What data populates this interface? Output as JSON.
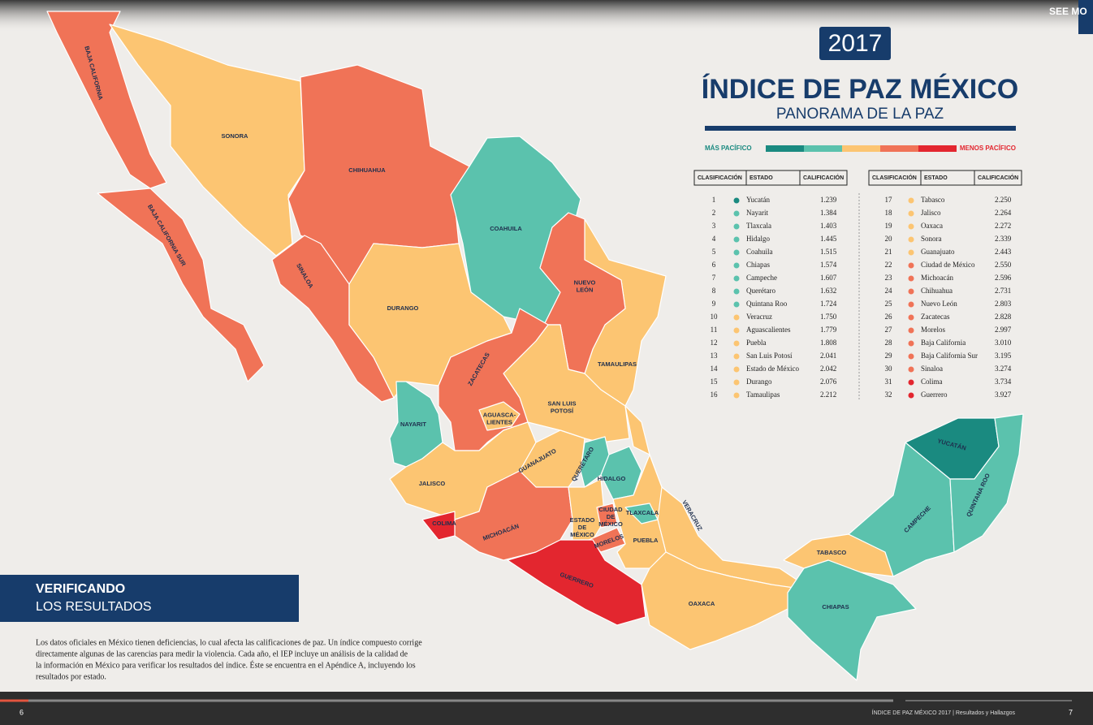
{
  "top_bar": {
    "link": "SEE MO"
  },
  "header": {
    "year": "2017",
    "title": "ÍNDICE DE PAZ MÉXICO",
    "subtitle": "PANORAMA DE LA PAZ"
  },
  "legend": {
    "left": "MÁS PACÍFICO",
    "right": "MENOS PACÍFICO",
    "colors": [
      "#1a8a80",
      "#5bc2ad",
      "#fcc572",
      "#f07357",
      "#e3262f"
    ]
  },
  "table": {
    "columns": [
      "CLASIFICACIÓN",
      "ESTADO",
      "CALIFICACIÓN"
    ],
    "rows": [
      {
        "rank": 1,
        "state": "Yucatán",
        "score": "1.239",
        "color": "#1a8a80"
      },
      {
        "rank": 2,
        "state": "Nayarit",
        "score": "1.384",
        "color": "#5bc2ad"
      },
      {
        "rank": 3,
        "state": "Tlaxcala",
        "score": "1.403",
        "color": "#5bc2ad"
      },
      {
        "rank": 4,
        "state": "Hidalgo",
        "score": "1.445",
        "color": "#5bc2ad"
      },
      {
        "rank": 5,
        "state": "Coahuila",
        "score": "1.515",
        "color": "#5bc2ad"
      },
      {
        "rank": 6,
        "state": "Chiapas",
        "score": "1.574",
        "color": "#5bc2ad"
      },
      {
        "rank": 7,
        "state": "Campeche",
        "score": "1.607",
        "color": "#5bc2ad"
      },
      {
        "rank": 8,
        "state": "Querétaro",
        "score": "1.632",
        "color": "#5bc2ad"
      },
      {
        "rank": 9,
        "state": "Quintana Roo",
        "score": "1.724",
        "color": "#5bc2ad"
      },
      {
        "rank": 10,
        "state": "Veracruz",
        "score": "1.750",
        "color": "#fcc572"
      },
      {
        "rank": 11,
        "state": "Aguascalientes",
        "score": "1.779",
        "color": "#fcc572"
      },
      {
        "rank": 12,
        "state": "Puebla",
        "score": "1.808",
        "color": "#fcc572"
      },
      {
        "rank": 13,
        "state": "San Luis Potosí",
        "score": "2.041",
        "color": "#fcc572"
      },
      {
        "rank": 14,
        "state": "Estado de México",
        "score": "2.042",
        "color": "#fcc572"
      },
      {
        "rank": 15,
        "state": "Durango",
        "score": "2.076",
        "color": "#fcc572"
      },
      {
        "rank": 16,
        "state": "Tamaulipas",
        "score": "2.212",
        "color": "#fcc572"
      },
      {
        "rank": 17,
        "state": "Tabasco",
        "score": "2.250",
        "color": "#fcc572"
      },
      {
        "rank": 18,
        "state": "Jalisco",
        "score": "2.264",
        "color": "#fcc572"
      },
      {
        "rank": 19,
        "state": "Oaxaca",
        "score": "2.272",
        "color": "#fcc572"
      },
      {
        "rank": 20,
        "state": "Sonora",
        "score": "2.339",
        "color": "#fcc572"
      },
      {
        "rank": 21,
        "state": "Guanajuato",
        "score": "2.443",
        "color": "#fcc572"
      },
      {
        "rank": 22,
        "state": "Ciudad de México",
        "score": "2.550",
        "color": "#f07357"
      },
      {
        "rank": 23,
        "state": "Michoacán",
        "score": "2.596",
        "color": "#f07357"
      },
      {
        "rank": 24,
        "state": "Chihuahua",
        "score": "2.731",
        "color": "#f07357"
      },
      {
        "rank": 25,
        "state": "Nuevo León",
        "score": "2.803",
        "color": "#f07357"
      },
      {
        "rank": 26,
        "state": "Zacatecas",
        "score": "2.828",
        "color": "#f07357"
      },
      {
        "rank": 27,
        "state": "Morelos",
        "score": "2.997",
        "color": "#f07357"
      },
      {
        "rank": 28,
        "state": "Baja California",
        "score": "3.010",
        "color": "#f07357"
      },
      {
        "rank": 29,
        "state": "Baja California Sur",
        "score": "3.195",
        "color": "#f07357"
      },
      {
        "rank": 30,
        "state": "Sinaloa",
        "score": "3.274",
        "color": "#f07357"
      },
      {
        "rank": 31,
        "state": "Colima",
        "score": "3.734",
        "color": "#e3262f"
      },
      {
        "rank": 32,
        "state": "Guerrero",
        "score": "3.927",
        "color": "#e3262f"
      }
    ]
  },
  "map_labels": [
    [
      "BAJA CALIFORNIA"
    ],
    [
      "BAJA CALIFORNIA SUR"
    ],
    [
      "SONORA"
    ],
    [
      "CHIHUAHUA"
    ],
    [
      "COAHUILA"
    ],
    [
      "SINALOA"
    ],
    [
      "DURANGO"
    ],
    [
      "NUEVO",
      "LEÓN"
    ],
    [
      "ZACATECAS"
    ],
    [
      "TAMAULIPAS"
    ],
    [
      "NAYARIT"
    ],
    [
      "AGUASCA-",
      "LIENTES"
    ],
    [
      "SAN LUIS",
      "POTOSÍ"
    ],
    [
      "JALISCO"
    ],
    [
      "GUANAJUATO"
    ],
    [
      "QUERÉTARO"
    ],
    [
      "HIDALGO"
    ],
    [
      "COLIMA"
    ],
    [
      "MICHOACÁN"
    ],
    [
      "ESTADO",
      "DE",
      "MÉXICO"
    ],
    [
      "CIUDAD",
      "DE",
      "MÉXICO"
    ],
    [
      "TLAXCALA"
    ],
    [
      "MORELOS"
    ],
    [
      "PUEBLA"
    ],
    [
      "VERACRUZ"
    ],
    [
      "GUERRERO"
    ],
    [
      "OAXACA"
    ],
    [
      "TABASCO"
    ],
    [
      "CHIAPAS"
    ],
    [
      "CAMPECHE"
    ],
    [
      "YUCATÁN"
    ],
    [
      "QUINTANA ROO"
    ]
  ],
  "section": {
    "title": "VERIFICANDO",
    "subtitle": "LOS RESULTADOS"
  },
  "body": {
    "lines": [
      "Los datos oficiales en México tienen deficiencias, lo cual afecta las calificaciones de paz. Un índice compuesto corrige",
      "directamente algunas de las carencias para medir la violencia. Cada año, el IEP incluye un análisis de la calidad de",
      "la información en México para verificar los resultados del índice. Éste se encuentra en el Apéndice A, incluyendo los",
      "resultados por estado."
    ]
  },
  "footer": {
    "left_page": "6",
    "center": "ÍNDICE DE PAZ MÉXICO 2017  |  Resultados y Hallazgos",
    "right_page": "7"
  }
}
